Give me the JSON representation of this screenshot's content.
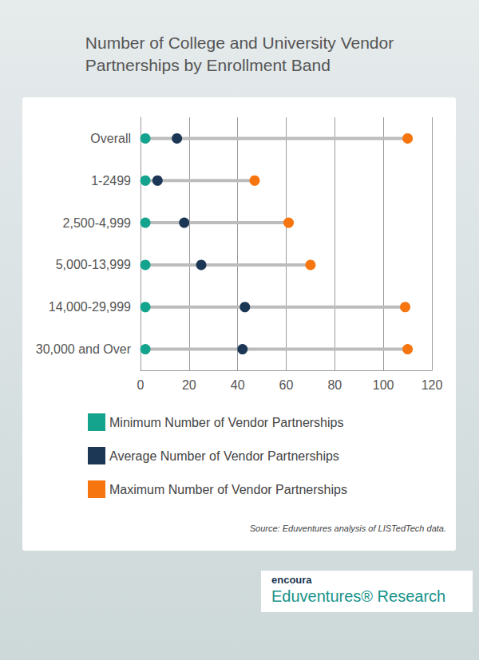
{
  "chart_data": {
    "type": "dumbbell",
    "title": "Number of College and University Vendor\nPartnerships by Enrollment Band",
    "orientation": "horizontal",
    "categories": [
      "Overall",
      "1-2499",
      "2,500-4,999",
      "5,000-13,999",
      "14,000-29,999",
      "30,000 and Over"
    ],
    "series": [
      {
        "name": "Minimum Number of Vendor Partnerships",
        "color": "#14a38d",
        "values": [
          2,
          2,
          2,
          2,
          2,
          2
        ]
      },
      {
        "name": "Average Number of Vendor Partnerships",
        "color": "#1c3756",
        "values": [
          15,
          7,
          18,
          25,
          43,
          42
        ]
      },
      {
        "name": "Maximum Number of Vendor Partnerships",
        "color": "#f7750f",
        "values": [
          110,
          47,
          61,
          70,
          109,
          110
        ]
      }
    ],
    "xlim": [
      0,
      120
    ],
    "xticks": [
      0,
      20,
      40,
      60,
      80,
      100,
      120
    ],
    "grid": true,
    "legend": "bottom",
    "annotations": [
      "Source: Eduventures analysis of LISTedTech data.",
      "encoura",
      "Eduventures® Research"
    ]
  }
}
